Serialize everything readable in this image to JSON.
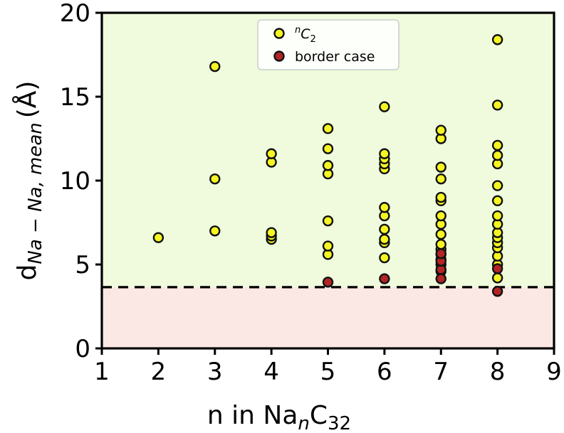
{
  "chart_data": {
    "type": "scatter",
    "xlabel": "n in Na",
    "xlabel_sub": "n",
    "xlabel_tail": "C",
    "xlabel_tail_sub": "32",
    "ylabel_main": "d",
    "ylabel_sub": "Na − Na, mean",
    "ylabel_unit": "(Å)",
    "xlim": [
      1,
      9
    ],
    "ylim": [
      0,
      20
    ],
    "xticks": [
      "1",
      "2",
      "3",
      "4",
      "5",
      "6",
      "7",
      "8",
      "9"
    ],
    "yticks": [
      "0",
      "5",
      "10",
      "15",
      "20"
    ],
    "threshold": 3.65,
    "regions": {
      "above_color": "#effbdc",
      "below_color": "#fbe8e4"
    },
    "legend": {
      "placement": "top-center",
      "entries": [
        {
          "label_sup": "n",
          "label": "C",
          "label_sub": "2",
          "color": "#f5f523"
        },
        {
          "label": "border case",
          "color": "#b32424"
        }
      ]
    },
    "series": [
      {
        "name": "nC2",
        "color": "#f5f523",
        "points": [
          [
            2,
            6.6
          ],
          [
            3,
            7.0
          ],
          [
            3,
            10.1
          ],
          [
            3,
            16.8
          ],
          [
            4,
            6.5
          ],
          [
            4,
            6.7
          ],
          [
            4,
            6.9
          ],
          [
            4,
            11.1
          ],
          [
            4,
            11.6
          ],
          [
            5,
            5.6
          ],
          [
            5,
            6.1
          ],
          [
            5,
            7.6
          ],
          [
            5,
            10.4
          ],
          [
            5,
            10.9
          ],
          [
            5,
            11.9
          ],
          [
            5,
            13.1
          ],
          [
            6,
            5.4
          ],
          [
            6,
            6.3
          ],
          [
            6,
            6.5
          ],
          [
            6,
            7.1
          ],
          [
            6,
            7.9
          ],
          [
            6,
            8.4
          ],
          [
            6,
            10.7
          ],
          [
            6,
            11.0
          ],
          [
            6,
            11.3
          ],
          [
            6,
            11.6
          ],
          [
            6,
            14.4
          ],
          [
            7,
            4.6
          ],
          [
            7,
            5.0
          ],
          [
            7,
            5.3
          ],
          [
            7,
            5.6
          ],
          [
            7,
            5.9
          ],
          [
            7,
            6.2
          ],
          [
            7,
            6.8
          ],
          [
            7,
            7.4
          ],
          [
            7,
            7.9
          ],
          [
            7,
            8.8
          ],
          [
            7,
            9.0
          ],
          [
            7,
            10.1
          ],
          [
            7,
            10.8
          ],
          [
            7,
            12.5
          ],
          [
            7,
            13.0
          ],
          [
            8,
            4.2
          ],
          [
            8,
            5.0
          ],
          [
            8,
            5.5
          ],
          [
            8,
            6.0
          ],
          [
            8,
            6.3
          ],
          [
            8,
            6.6
          ],
          [
            8,
            6.9
          ],
          [
            8,
            7.4
          ],
          [
            8,
            7.9
          ],
          [
            8,
            8.8
          ],
          [
            8,
            9.7
          ],
          [
            8,
            11.0
          ],
          [
            8,
            11.5
          ],
          [
            8,
            12.1
          ],
          [
            8,
            14.5
          ],
          [
            8,
            18.4
          ]
        ]
      },
      {
        "name": "border case",
        "color": "#b32424",
        "points": [
          [
            5,
            3.95
          ],
          [
            6,
            4.15
          ],
          [
            7,
            4.15
          ],
          [
            7,
            4.7
          ],
          [
            7,
            5.2
          ],
          [
            7,
            5.65
          ],
          [
            8,
            3.4
          ],
          [
            8,
            4.75
          ]
        ]
      }
    ]
  }
}
